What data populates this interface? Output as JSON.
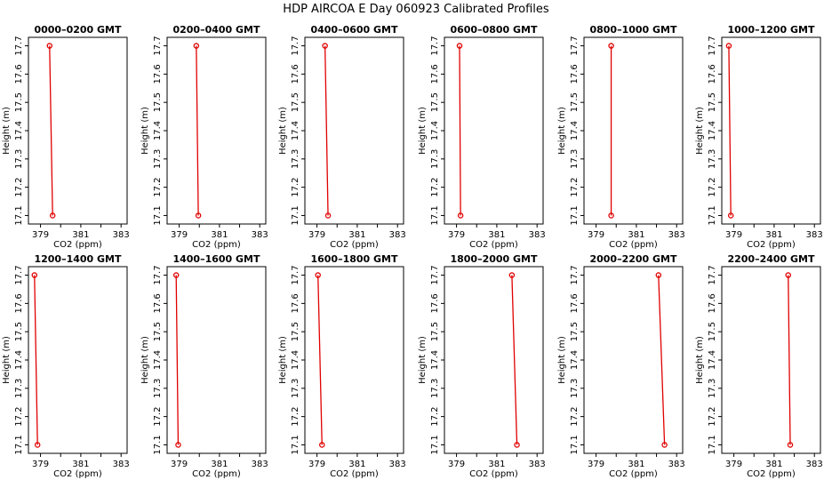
{
  "title": "HDP AIRCOA E  Day 060923  Calibrated Profiles",
  "chart_data": {
    "type": "line",
    "title": "HDP AIRCOA E  Day 060923  Calibrated Profiles",
    "xlabel": "CO2 (ppm)",
    "ylabel": "Height (m)",
    "xlim": [
      378.4,
      383.3
    ],
    "ylim": [
      17.07,
      17.73
    ],
    "x_ticks": [
      379,
      381,
      383
    ],
    "y_ticks": [
      17.1,
      17.2,
      17.3,
      17.4,
      17.5,
      17.6,
      17.7
    ],
    "x_tick_labels": [
      "379",
      "381",
      "383"
    ],
    "y_tick_labels": [
      "17.1",
      "17.2",
      "17.3",
      "17.4",
      "17.5",
      "17.6",
      "17.7"
    ],
    "grid": false,
    "line_color": "#e00000",
    "panels": [
      {
        "title": "0000–0200 GMT",
        "points": [
          {
            "x": 379.45,
            "y": 17.7
          },
          {
            "x": 379.6,
            "y": 17.1
          }
        ]
      },
      {
        "title": "0200–0400 GMT",
        "points": [
          {
            "x": 379.85,
            "y": 17.7
          },
          {
            "x": 379.95,
            "y": 17.1
          }
        ]
      },
      {
        "title": "0400–0600 GMT",
        "points": [
          {
            "x": 379.4,
            "y": 17.7
          },
          {
            "x": 379.55,
            "y": 17.1
          }
        ]
      },
      {
        "title": "0600–0800 GMT",
        "points": [
          {
            "x": 379.15,
            "y": 17.7
          },
          {
            "x": 379.2,
            "y": 17.1
          }
        ]
      },
      {
        "title": "0800–1000 GMT",
        "points": [
          {
            "x": 379.75,
            "y": 17.7
          },
          {
            "x": 379.75,
            "y": 17.1
          }
        ]
      },
      {
        "title": "1000–1200 GMT",
        "points": [
          {
            "x": 378.75,
            "y": 17.7
          },
          {
            "x": 378.85,
            "y": 17.1
          }
        ]
      },
      {
        "title": "1200–1400 GMT",
        "points": [
          {
            "x": 378.7,
            "y": 17.7
          },
          {
            "x": 378.85,
            "y": 17.1
          }
        ]
      },
      {
        "title": "1400–1600 GMT",
        "points": [
          {
            "x": 378.85,
            "y": 17.7
          },
          {
            "x": 378.95,
            "y": 17.1
          }
        ]
      },
      {
        "title": "1600–1800 GMT",
        "points": [
          {
            "x": 379.05,
            "y": 17.7
          },
          {
            "x": 379.25,
            "y": 17.1
          }
        ]
      },
      {
        "title": "1800–2000 GMT",
        "points": [
          {
            "x": 381.75,
            "y": 17.7
          },
          {
            "x": 382.0,
            "y": 17.1
          }
        ]
      },
      {
        "title": "2000–2200 GMT",
        "points": [
          {
            "x": 382.1,
            "y": 17.7
          },
          {
            "x": 382.4,
            "y": 17.1
          }
        ]
      },
      {
        "title": "2200–2400 GMT",
        "points": [
          {
            "x": 381.7,
            "y": 17.7
          },
          {
            "x": 381.8,
            "y": 17.1
          }
        ]
      }
    ]
  }
}
